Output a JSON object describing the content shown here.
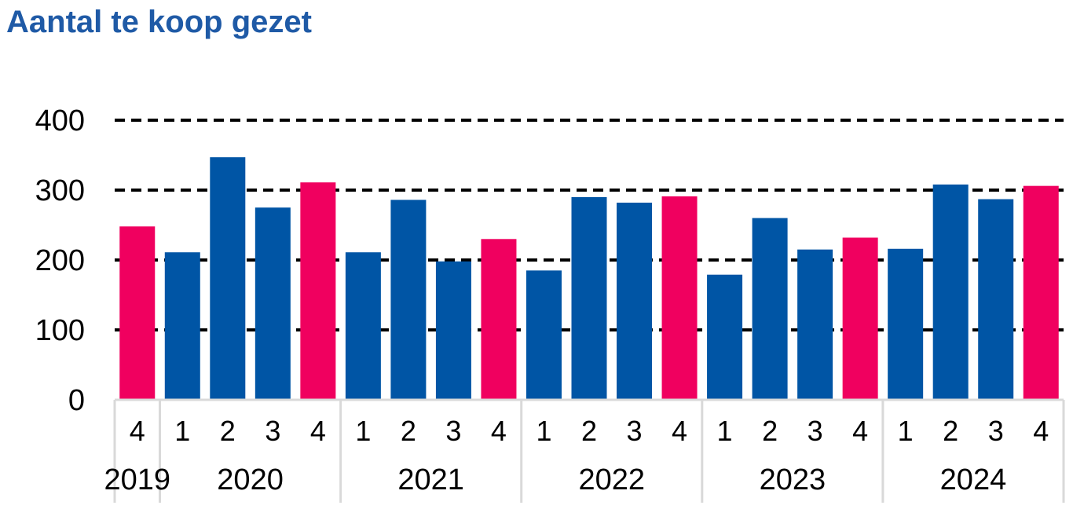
{
  "chart_data": {
    "type": "bar",
    "title": "Aantal te koop gezet",
    "ylim": [
      0,
      400
    ],
    "yticks": [
      0,
      100,
      200,
      300,
      400
    ],
    "grid": "dashed horizontal",
    "colors": {
      "regular": "#0055A5",
      "q4": "#F0005F"
    },
    "categories": [
      {
        "year": "2019",
        "quarter": "4"
      },
      {
        "year": "2020",
        "quarter": "1"
      },
      {
        "year": "2020",
        "quarter": "2"
      },
      {
        "year": "2020",
        "quarter": "3"
      },
      {
        "year": "2020",
        "quarter": "4"
      },
      {
        "year": "2021",
        "quarter": "1"
      },
      {
        "year": "2021",
        "quarter": "2"
      },
      {
        "year": "2021",
        "quarter": "3"
      },
      {
        "year": "2021",
        "quarter": "4"
      },
      {
        "year": "2022",
        "quarter": "1"
      },
      {
        "year": "2022",
        "quarter": "2"
      },
      {
        "year": "2022",
        "quarter": "3"
      },
      {
        "year": "2022",
        "quarter": "4"
      },
      {
        "year": "2023",
        "quarter": "1"
      },
      {
        "year": "2023",
        "quarter": "2"
      },
      {
        "year": "2023",
        "quarter": "3"
      },
      {
        "year": "2023",
        "quarter": "4"
      },
      {
        "year": "2024",
        "quarter": "1"
      },
      {
        "year": "2024",
        "quarter": "2"
      },
      {
        "year": "2024",
        "quarter": "3"
      },
      {
        "year": "2024",
        "quarter": "4"
      }
    ],
    "values": [
      248,
      211,
      347,
      275,
      311,
      211,
      286,
      198,
      230,
      185,
      290,
      282,
      291,
      179,
      260,
      215,
      232,
      216,
      308,
      287,
      306
    ],
    "years": [
      "2019",
      "2020",
      "2021",
      "2022",
      "2023",
      "2024"
    ]
  }
}
